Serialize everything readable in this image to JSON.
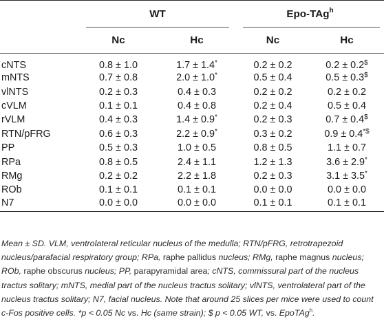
{
  "table": {
    "group_headers": [
      "WT",
      "Epo-TAg"
    ],
    "group_header_sup": "h",
    "sub_headers": [
      "Nc",
      "Hc",
      "Nc",
      "Hc"
    ],
    "rows": [
      {
        "label": "cNTS",
        "cells": [
          {
            "v": "0.8 ± 1.0",
            "s": ""
          },
          {
            "v": "1.7 ± 1.4",
            "s": "*"
          },
          {
            "v": "0.2 ± 0.2",
            "s": ""
          },
          {
            "v": "0.2 ± 0.2",
            "s": "$"
          }
        ]
      },
      {
        "label": "mNTS",
        "cells": [
          {
            "v": "0.7 ± 0.8",
            "s": ""
          },
          {
            "v": "2.0 ± 1.0",
            "s": "*"
          },
          {
            "v": "0.5 ± 0.4",
            "s": ""
          },
          {
            "v": "0.5 ± 0.3",
            "s": "$"
          }
        ]
      },
      {
        "label": "vlNTS",
        "cells": [
          {
            "v": "0.2 ± 0.3",
            "s": ""
          },
          {
            "v": "0.4 ± 0.3",
            "s": ""
          },
          {
            "v": "0.2 ± 0.2",
            "s": ""
          },
          {
            "v": "0.2 ± 0.2",
            "s": ""
          }
        ]
      },
      {
        "label": "cVLM",
        "cells": [
          {
            "v": "0.1 ± 0.1",
            "s": ""
          },
          {
            "v": "0.4 ± 0.8",
            "s": ""
          },
          {
            "v": "0.2 ± 0.4",
            "s": ""
          },
          {
            "v": "0.5 ± 0.4",
            "s": ""
          }
        ]
      },
      {
        "label": "rVLM",
        "cells": [
          {
            "v": "0.4 ± 0.3",
            "s": ""
          },
          {
            "v": "1.4 ± 0.9",
            "s": "*"
          },
          {
            "v": "0.2 ± 0.3",
            "s": ""
          },
          {
            "v": "0.7 ± 0.4",
            "s": "$"
          }
        ]
      },
      {
        "label": "RTN/pFRG",
        "cells": [
          {
            "v": "0.6 ± 0.3",
            "s": ""
          },
          {
            "v": "2.2 ± 0.9",
            "s": "*"
          },
          {
            "v": "0.3 ± 0.2",
            "s": ""
          },
          {
            "v": "0.9 ± 0.4",
            "s": "*$"
          }
        ]
      },
      {
        "label": "PP",
        "cells": [
          {
            "v": "0.5 ± 0.3",
            "s": ""
          },
          {
            "v": "1.0 ± 0.5",
            "s": ""
          },
          {
            "v": "0.8 ± 0.5",
            "s": ""
          },
          {
            "v": "1.1 ± 0.7",
            "s": ""
          }
        ]
      },
      {
        "label": "RPa",
        "cells": [
          {
            "v": "0.8 ± 0.5",
            "s": ""
          },
          {
            "v": "2.4 ± 1.1",
            "s": ""
          },
          {
            "v": "1.2 ± 1.3",
            "s": ""
          },
          {
            "v": "3.6 ± 2.9",
            "s": "*"
          }
        ]
      },
      {
        "label": "RMg",
        "cells": [
          {
            "v": "0.2 ± 0.2",
            "s": ""
          },
          {
            "v": "2.2 ± 1.8",
            "s": ""
          },
          {
            "v": "0.2 ± 0.3",
            "s": ""
          },
          {
            "v": "3.1 ± 3.5",
            "s": "*"
          }
        ]
      },
      {
        "label": "ROb",
        "cells": [
          {
            "v": "0.1 ± 0.1",
            "s": ""
          },
          {
            "v": "0.1 ± 0.1",
            "s": ""
          },
          {
            "v": "0.0 ± 0.0",
            "s": ""
          },
          {
            "v": "0.0 ± 0.0",
            "s": ""
          }
        ]
      },
      {
        "label": "N7",
        "cells": [
          {
            "v": "0.0 ± 0.0",
            "s": ""
          },
          {
            "v": "0.0 ± 0.0",
            "s": ""
          },
          {
            "v": "0.1 ± 0.1",
            "s": ""
          },
          {
            "v": "0.1 ± 0.1",
            "s": ""
          }
        ]
      }
    ]
  },
  "footnote": {
    "p1": "Mean ± SD. VLM, ventrolateral reticular nucleus of the medulla; RTN/pFRG, retrotrapezoid nucleus/parafacial respiratory group; RPa,",
    "p2": " raphe pallidus ",
    "p3": "nucleus; RMg,",
    "p4": " raphe magnus ",
    "p5": "nucleus; ROb,",
    "p6": " raphe obscurus ",
    "p7": "nucleus; PP,",
    "p8": " parapyramidal area",
    "p9": "; cNTS, commissural part of the nucleus tractus solitary; mNTS, medial part of the nucleus tractus solitary; vlNTS, ventrolateral part of the nucleus tractus solitary; N7, facial nucleus. Note that around 25 slices per mice were used to count c-Fos positive cells. *p < 0.05 Nc",
    "p10": " vs. ",
    "p11": "Hc (same strain); $ p < 0.05 WT,",
    "p12": " vs. ",
    "p13": "EpoTAg",
    "p13_sup": "h",
    "p14": "."
  }
}
